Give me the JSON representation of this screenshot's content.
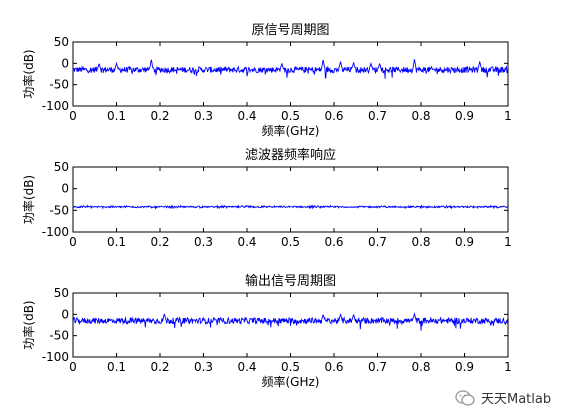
{
  "chart_data": [
    {
      "type": "line",
      "title": "原信号周期图",
      "xlabel": "频率(GHz)",
      "ylabel": "功率(dB)",
      "xlim": [
        0,
        1
      ],
      "ylim": [
        -100,
        50
      ],
      "xticks": [
        "0",
        "0.1",
        "0.2",
        "0.3",
        "0.4",
        "0.5",
        "0.6",
        "0.7",
        "0.8",
        "0.9",
        "1"
      ],
      "yticks": [
        "50",
        "0",
        "-50",
        "-100"
      ],
      "color": "#0000ff",
      "noise_floor": -15,
      "peaks": [
        {
          "x": 0.06,
          "y": 0
        },
        {
          "x": 0.1,
          "y": 0
        },
        {
          "x": 0.18,
          "y": 10
        },
        {
          "x": 0.48,
          "y": 0
        },
        {
          "x": 0.575,
          "y": 10
        },
        {
          "x": 0.615,
          "y": 5
        },
        {
          "x": 0.645,
          "y": 3
        },
        {
          "x": 0.685,
          "y": 0
        },
        {
          "x": 0.705,
          "y": 0
        },
        {
          "x": 0.785,
          "y": 10
        },
        {
          "x": 0.935,
          "y": 5
        }
      ]
    },
    {
      "type": "line",
      "title": "滤波器频率响应",
      "xlabel": "",
      "ylabel": "功率(dB)",
      "xlim": [
        0,
        1
      ],
      "ylim": [
        -100,
        50
      ],
      "xticks": [
        "0",
        "0.1",
        "0.2",
        "0.3",
        "0.4",
        "0.5",
        "0.6",
        "0.7",
        "0.8",
        "0.9",
        "1"
      ],
      "yticks": [
        "50",
        "0",
        "-50",
        "-100"
      ],
      "color": "#0000ff",
      "noise_floor": -42,
      "peaks": []
    },
    {
      "type": "line",
      "title": "输出信号周期图",
      "xlabel": "频率(GHz)",
      "ylabel": "功率(dB)",
      "xlim": [
        0,
        1
      ],
      "ylim": [
        -100,
        50
      ],
      "xticks": [
        "0",
        "0.1",
        "0.2",
        "0.3",
        "0.4",
        "0.5",
        "0.6",
        "0.7",
        "0.8",
        "0.9",
        "1"
      ],
      "yticks": [
        "50",
        "0",
        "-50",
        "-100"
      ],
      "color": "#0000ff",
      "noise_floor": -15,
      "peaks": [
        {
          "x": 0.21,
          "y": 2
        },
        {
          "x": 0.575,
          "y": 0
        },
        {
          "x": 0.615,
          "y": 0
        },
        {
          "x": 0.645,
          "y": 0
        },
        {
          "x": 0.785,
          "y": 2
        }
      ]
    }
  ],
  "watermark": {
    "text": "天天Matlab"
  }
}
